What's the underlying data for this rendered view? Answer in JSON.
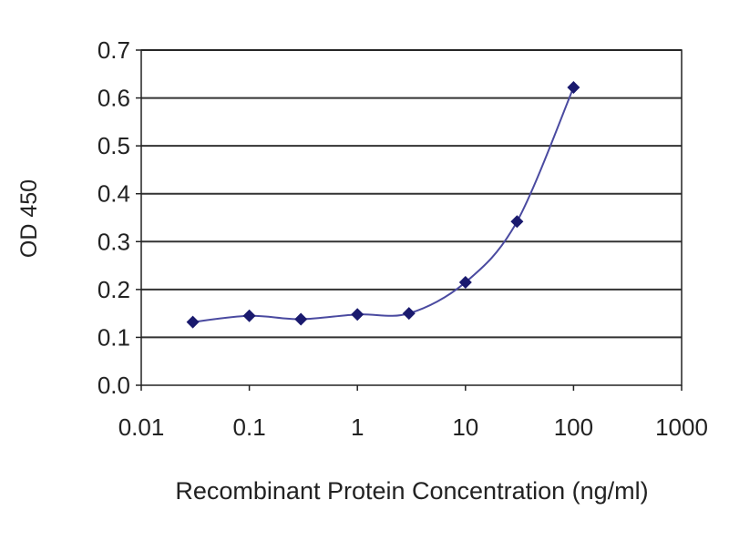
{
  "chart_data": {
    "type": "line",
    "title": "",
    "xlabel": "Recombinant Protein Concentration (ng/ml)",
    "ylabel": "OD 450",
    "x_scale": "log",
    "xlim": [
      0.01,
      1000
    ],
    "ylim": [
      0,
      0.7
    ],
    "x_ticks": [
      "0.01",
      "0.1",
      "1",
      "10",
      "100",
      "1000"
    ],
    "x_tick_values": [
      0.01,
      0.1,
      1,
      10,
      100,
      1000
    ],
    "y_ticks": [
      "0.0",
      "0.1",
      "0.2",
      "0.3",
      "0.4",
      "0.5",
      "0.6",
      "0.7"
    ],
    "y_tick_values": [
      0,
      0.1,
      0.2,
      0.3,
      0.4,
      0.5,
      0.6,
      0.7
    ],
    "grid": "horizontal",
    "legend": "none",
    "series": [
      {
        "x": [
          0.03,
          0.1,
          0.3,
          1,
          3,
          10,
          30,
          100
        ],
        "y": [
          0.132,
          0.145,
          0.138,
          0.148,
          0.15,
          0.215,
          0.342,
          0.622
        ],
        "color": "#1a1a6e",
        "marker": "diamond",
        "smooth": true
      }
    ]
  }
}
